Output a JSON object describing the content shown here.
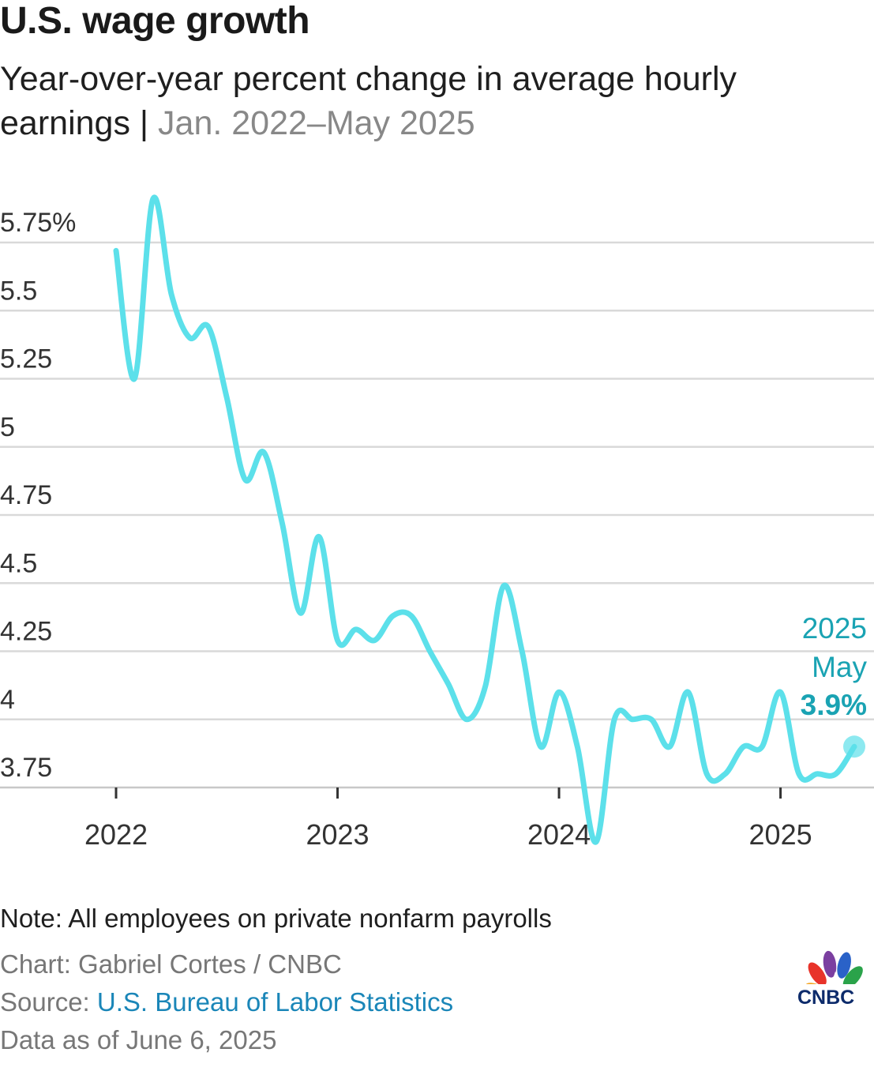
{
  "header": {
    "title": "U.S. wage growth",
    "subtitle_main": "Year-over-year percent change in average hourly earnings",
    "subtitle_sep": " | ",
    "subtitle_dates": "Jan. 2022–May 2025"
  },
  "chart_data": {
    "type": "line",
    "title": "U.S. wage growth",
    "ylabel": "Year-over-year percent change in average hourly earnings",
    "xlabel": "",
    "ylim": [
      3.75,
      5.75
    ],
    "y_ticks": [
      5.75,
      5.5,
      5.25,
      5,
      4.75,
      4.5,
      4.25,
      4,
      3.75
    ],
    "y_tick_labels": [
      "5.75%",
      "5.5",
      "5.25",
      "5",
      "4.75",
      "4.5",
      "4.25",
      "4",
      "3.75"
    ],
    "x_ticks": [
      2022,
      2023,
      2024,
      2025
    ],
    "x_tick_labels": [
      "2022",
      "2023",
      "2024",
      "2025"
    ],
    "series": [
      {
        "name": "Average hourly earnings YoY %",
        "color": "#5ce0ea",
        "x": [
          2022.0,
          2022.083,
          2022.167,
          2022.25,
          2022.333,
          2022.417,
          2022.5,
          2022.583,
          2022.667,
          2022.75,
          2022.833,
          2022.917,
          2023.0,
          2023.083,
          2023.167,
          2023.25,
          2023.333,
          2023.417,
          2023.5,
          2023.583,
          2023.667,
          2023.75,
          2023.833,
          2023.917,
          2024.0,
          2024.083,
          2024.167,
          2024.25,
          2024.333,
          2024.417,
          2024.5,
          2024.583,
          2024.667,
          2024.75,
          2024.833,
          2024.917,
          2025.0,
          2025.083,
          2025.167,
          2025.25,
          2025.333
        ],
        "values": [
          5.72,
          5.25,
          5.91,
          5.56,
          5.4,
          5.44,
          5.18,
          4.88,
          4.98,
          4.72,
          4.39,
          4.67,
          4.29,
          4.33,
          4.29,
          4.38,
          4.38,
          4.25,
          4.13,
          4.0,
          4.12,
          4.49,
          4.25,
          3.9,
          4.1,
          3.9,
          3.55,
          4.0,
          4.0,
          4.0,
          3.9,
          4.1,
          3.8,
          3.8,
          3.9,
          3.9,
          4.1,
          3.8,
          3.8,
          3.8,
          3.9
        ]
      }
    ],
    "annotation": {
      "year": "2025",
      "month": "May",
      "value": "3.9%"
    }
  },
  "footer": {
    "note": "Note: All employees on private nonfarm payrolls",
    "chart_credit": "Chart: Gabriel Cortes / CNBC",
    "source_label": "Source: ",
    "source_link": "U.S. Bureau of Labor Statistics",
    "data_as_of": "Data as of June 6, 2025",
    "logo_text": "CNBC"
  }
}
